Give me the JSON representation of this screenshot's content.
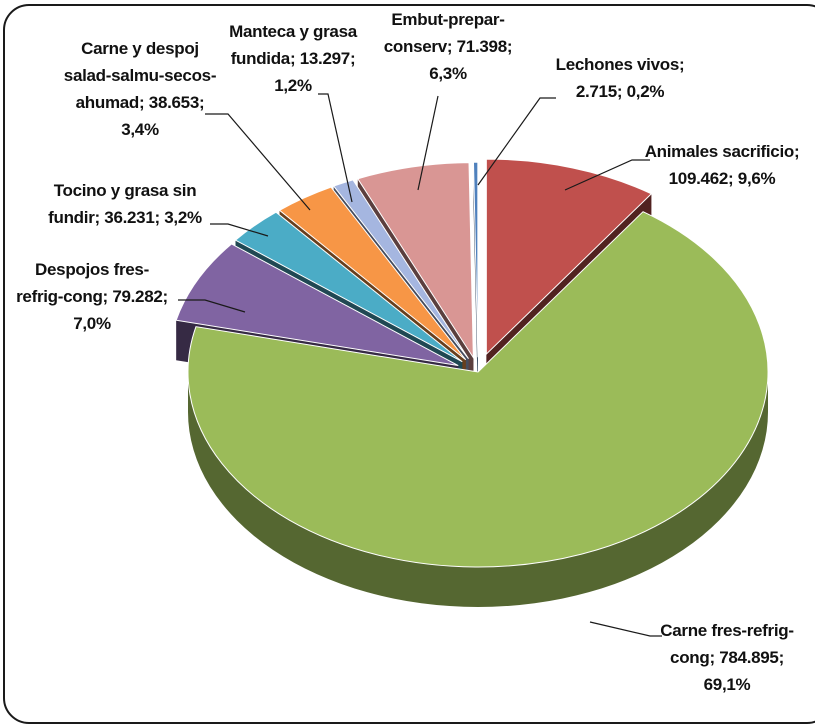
{
  "chart_data": {
    "type": "pie",
    "style": "3d-exploded",
    "slices": [
      {
        "label_lines": [
          "Animales sacrificio;",
          "109.462; 9,6%"
        ],
        "value": 109462,
        "percent": 9.6,
        "color": "#c0504d"
      },
      {
        "label_lines": [
          "Carne fres-refrig-",
          "cong; 784.895;",
          "69,1%"
        ],
        "value": 784895,
        "percent": 69.1,
        "color": "#9bbb59"
      },
      {
        "label_lines": [
          "Despojos fres-",
          "refrig-cong; 79.282;",
          "7,0%"
        ],
        "value": 79282,
        "percent": 7.0,
        "color": "#8064a2"
      },
      {
        "label_lines": [
          "Tocino y grasa sin",
          "fundir; 36.231; 3,2%"
        ],
        "value": 36231,
        "percent": 3.2,
        "color": "#4bacc6"
      },
      {
        "label_lines": [
          "Carne y despoj",
          "salad-salmu-secos-",
          "ahumad; 38.653;",
          "3,4%"
        ],
        "value": 38653,
        "percent": 3.4,
        "color": "#f79646"
      },
      {
        "label_lines": [
          "Manteca y grasa",
          "fundida; 13.297;",
          "1,2%"
        ],
        "value": 13297,
        "percent": 1.2,
        "color": "#a5b6e0"
      },
      {
        "label_lines": [
          "Embut-prepar-",
          "conserv; 71.398;",
          "6,3%"
        ],
        "value": 71398,
        "percent": 6.3,
        "color": "#d99694"
      },
      {
        "label_lines": [
          "Lechones vivos;",
          "2.715; 0,2%"
        ],
        "value": 2715,
        "percent": 0.2,
        "color": "#4f81bd"
      }
    ],
    "legend": "none",
    "labels": "outside-with-leader-lines"
  }
}
